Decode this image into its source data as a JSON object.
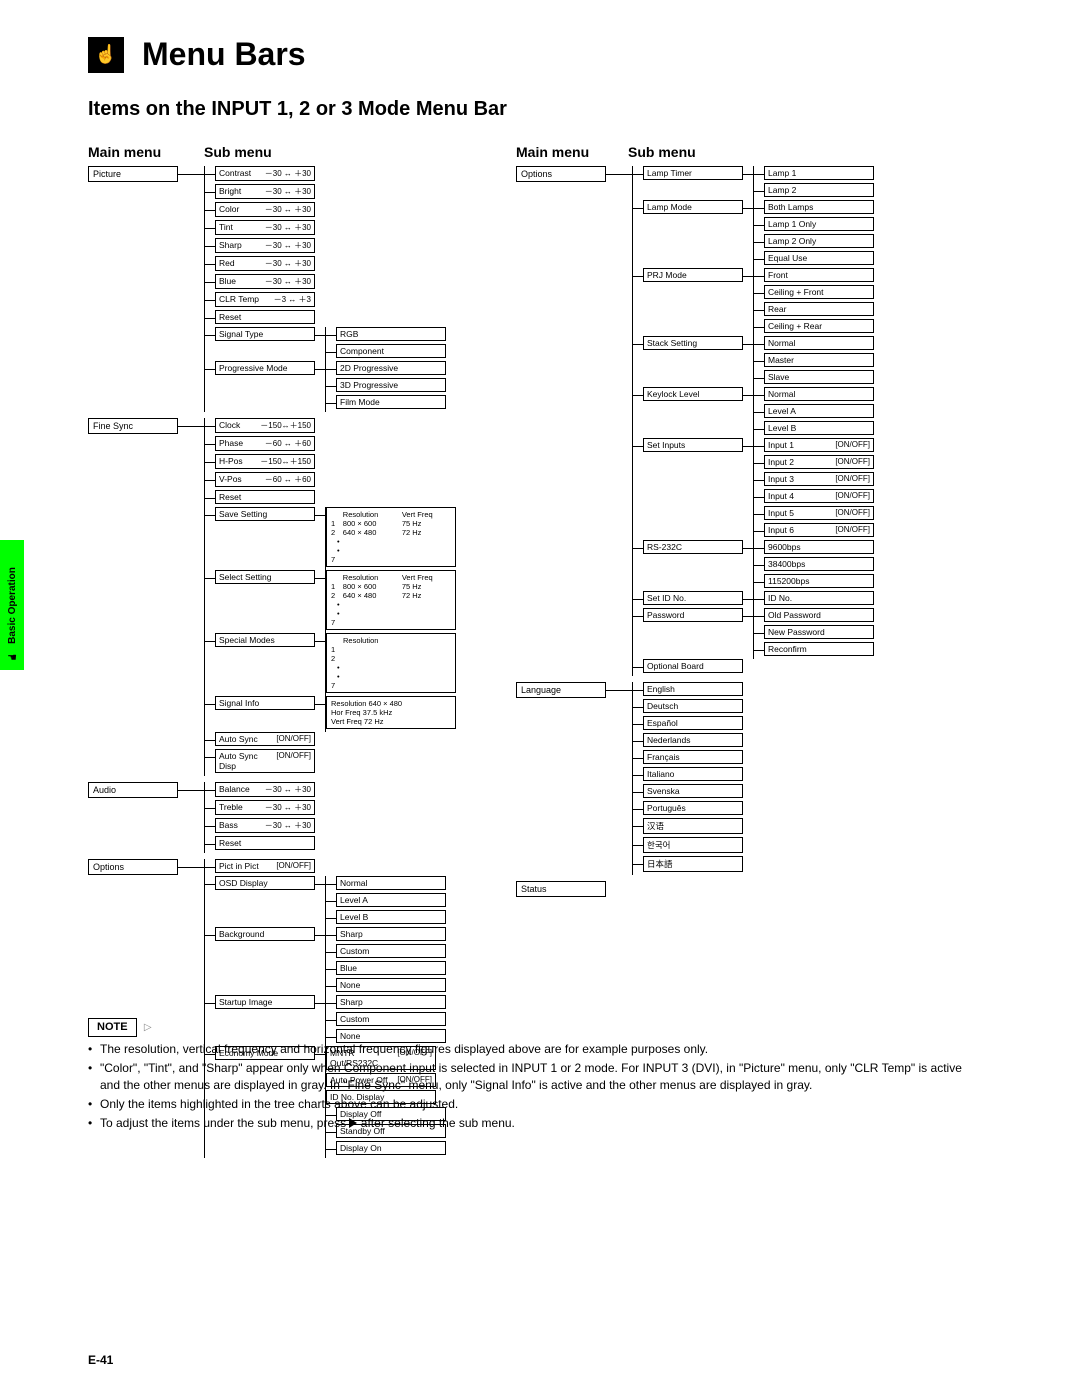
{
  "sideTab": {
    "label": "Basic Operation"
  },
  "header": {
    "title": "Menu Bars",
    "subtitle": "Items on the INPUT 1, 2 or 3 Mode Menu Bar"
  },
  "colHeaders": {
    "main": "Main menu",
    "sub": "Sub menu"
  },
  "range30": "－30 ↔ ＋30",
  "range3": "－3 ↔ ＋3",
  "range150": "－150↔＋150",
  "range60": "－60 ↔ ＋60",
  "onoff": "[ON/OFF]",
  "leftTree": [
    {
      "main": "Picture",
      "subs": [
        {
          "label": "Contrast",
          "rangeKey": "range30"
        },
        {
          "label": "Bright",
          "rangeKey": "range30"
        },
        {
          "label": "Color",
          "rangeKey": "range30"
        },
        {
          "label": "Tint",
          "rangeKey": "range30"
        },
        {
          "label": "Sharp",
          "rangeKey": "range30"
        },
        {
          "label": "Red",
          "rangeKey": "range30"
        },
        {
          "label": "Blue",
          "rangeKey": "range30"
        },
        {
          "label": "CLR Temp",
          "rangeKey": "range3"
        },
        {
          "label": "Reset"
        },
        {
          "label": "Signal Type",
          "sub3": [
            "RGB",
            "Component"
          ]
        },
        {
          "label": "Progressive Mode",
          "sub3": [
            "2D Progressive",
            "3D Progressive",
            "Film Mode"
          ]
        }
      ]
    },
    {
      "main": "Fine Sync",
      "subs": [
        {
          "label": "Clock",
          "rangeKey": "range150"
        },
        {
          "label": "Phase",
          "rangeKey": "range60"
        },
        {
          "label": "H-Pos",
          "rangeKey": "range150"
        },
        {
          "label": "V-Pos",
          "rangeKey": "range60"
        },
        {
          "label": "Reset"
        },
        {
          "label": "Save Setting",
          "resTable": 1
        },
        {
          "label": "Select Setting",
          "resTable": 1
        },
        {
          "label": "Special Modes",
          "resOnly": 1
        },
        {
          "label": "Signal Info",
          "sigInfo": 1
        },
        {
          "label": "Auto Sync",
          "onoff": true
        },
        {
          "label": "Auto Sync Disp",
          "onoff": true
        }
      ]
    },
    {
      "main": "Audio",
      "subs": [
        {
          "label": "Balance",
          "rangeKey": "range30"
        },
        {
          "label": "Treble",
          "rangeKey": "range30"
        },
        {
          "label": "Bass",
          "rangeKey": "range30"
        },
        {
          "label": "Reset"
        }
      ]
    },
    {
      "main": "Options",
      "subs": [
        {
          "label": "Pict in Pict",
          "onoff": true
        },
        {
          "label": "OSD Display",
          "sub3": [
            "Normal",
            "Level A",
            "Level B"
          ]
        },
        {
          "label": "Background",
          "sub3": [
            "Sharp",
            "Custom",
            "Blue",
            "None"
          ]
        },
        {
          "label": "Startup Image",
          "sub3": [
            "Sharp",
            "Custom",
            "None"
          ]
        },
        {
          "label": "Economy Mode",
          "econ": [
            {
              "l": "MNTR Out/RS232C",
              "o": true
            },
            {
              "l": "Auto Power Off",
              "o": true
            },
            {
              "l": "ID No. Display"
            }
          ],
          "sub3": [
            "Display Off",
            "Standby Off",
            "Display On"
          ]
        }
      ]
    }
  ],
  "resTable": {
    "head": [
      "",
      "Resolution",
      "Vert Freq"
    ],
    "rows": [
      [
        "1",
        "800 × 600",
        "75 Hz"
      ],
      [
        "2",
        "640 × 480",
        "72 Hz"
      ]
    ],
    "tail": "7"
  },
  "resOnly": {
    "head": [
      "",
      "Resolution"
    ],
    "rows": [
      [
        "1",
        ""
      ],
      [
        "2",
        ""
      ]
    ],
    "tail": "7"
  },
  "sigInfo": [
    "Resolution   640 × 480",
    "Hor Freq     37.5 kHz",
    "Vert Freq    72 Hz"
  ],
  "rightTree": [
    {
      "main": "Options",
      "subs": [
        {
          "label": "Lamp Timer",
          "sub3": [
            "Lamp 1",
            "Lamp 2"
          ]
        },
        {
          "label": "Lamp Mode",
          "sub3": [
            "Both Lamps",
            "Lamp 1 Only",
            "Lamp 2 Only",
            "Equal Use"
          ]
        },
        {
          "label": "PRJ Mode",
          "sub3": [
            "Front",
            "Ceiling + Front",
            "Rear",
            "Ceiling + Rear"
          ]
        },
        {
          "label": "Stack Setting",
          "sub3": [
            "Normal",
            "Master",
            "Slave"
          ]
        },
        {
          "label": "Keylock Level",
          "sub3": [
            "Normal",
            "Level A",
            "Level B"
          ]
        },
        {
          "label": "Set Inputs",
          "sub3io": [
            "Input 1",
            "Input 2",
            "Input 3",
            "Input 4",
            "Input 5",
            "Input 6"
          ]
        },
        {
          "label": "RS-232C",
          "sub3": [
            "9600bps",
            "38400bps",
            "115200bps"
          ]
        },
        {
          "label": "Set ID No.",
          "sub3": [
            "ID No."
          ]
        },
        {
          "label": "Password",
          "sub3": [
            "Old Password",
            "New Password",
            "Reconfirm"
          ]
        },
        {
          "label": "Optional Board"
        }
      ]
    },
    {
      "main": "Language",
      "subs": [
        {
          "label": "English"
        },
        {
          "label": "Deutsch"
        },
        {
          "label": "Español"
        },
        {
          "label": "Nederlands"
        },
        {
          "label": "Français"
        },
        {
          "label": "Italiano"
        },
        {
          "label": "Svenska"
        },
        {
          "label": "Português"
        },
        {
          "label": "汉语"
        },
        {
          "label": "한국어"
        },
        {
          "label": "日本語"
        }
      ]
    },
    {
      "main": "Status",
      "subs": []
    }
  ],
  "note": {
    "label": "NOTE",
    "bullets": [
      "The resolution, vertical frequency and horizontal frequency figures displayed above are for example purposes only.",
      "\"Color\", \"Tint\", and \"Sharp\" appear only when Component input is selected in INPUT 1 or 2 mode. For INPUT 3 (DVI), in \"Picture\" menu, only \"CLR Temp\" is active and the other menus are displayed in gray. In \"Fine Sync\" menu, only \"Signal Info\" is active and the other menus are displayed in gray.",
      "Only the items highlighted in the tree charts above can be adjusted.",
      "To adjust the items under the sub menu, press ▶ after selecting the sub menu."
    ]
  },
  "pageNum": "E-41"
}
